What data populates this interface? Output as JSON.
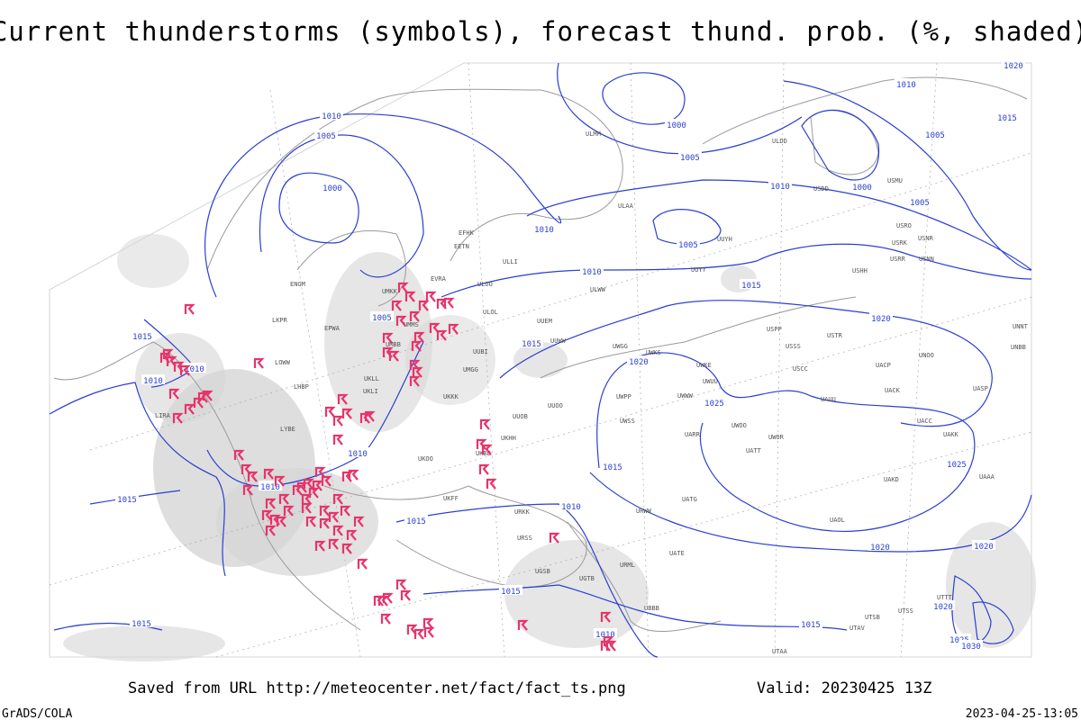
{
  "title": "Current thunderstorms (symbols), forecast thund. prob. (%, shaded)",
  "saved_from": "Saved from URL http://meteocenter.net/fact/fact_ts.png",
  "valid": "Valid: 20230425 13Z",
  "credit": "GrADS/COLA",
  "timestamp": "2023-04-25-13:05",
  "isobar_labels": [
    1010,
    1005,
    1000,
    1000,
    1005,
    1010,
    1000,
    1005,
    1010,
    1005,
    1010,
    1015,
    1020,
    1015,
    1020,
    1025,
    1025,
    1015,
    1010,
    1010,
    1010,
    1015,
    1015,
    1010,
    1005,
    1010,
    1015,
    1015,
    1020,
    1020,
    1020,
    1015,
    1015,
    1010,
    1020,
    1010,
    1015,
    1005,
    1025,
    1030
  ],
  "station_labels": [
    "ULAA",
    "ULOL",
    "ULOO",
    "ULWW",
    "UUEM",
    "UUWW",
    "UUOO",
    "UUOB",
    "UKHH",
    "UKKK",
    "EFHK",
    "EETN",
    "EVRA",
    "ULLI",
    "UMKK",
    "UMMS",
    "UMBB",
    "UKLL",
    "UKLI",
    "LHBP",
    "LYBE",
    "UKOO",
    "UKFF",
    "URKK",
    "URSS",
    "UGSB",
    "UGTB",
    "UBBB",
    "URWW",
    "URML",
    "UATE",
    "UATG",
    "UAOL",
    "UACC",
    "UAKK",
    "UASP",
    "UAKD",
    "UAAA",
    "USSS",
    "USCC",
    "USTR",
    "UNOO",
    "USPP",
    "UUYY",
    "UUYH",
    "USHH",
    "USRR",
    "USNN",
    "USRK",
    "USRO",
    "USNR",
    "USDD",
    "ULDD",
    "USMU",
    "UNNT",
    "UNBB",
    "UAUU",
    "UACK",
    "UACP",
    "UWOO",
    "UWOR",
    "UATT",
    "UARR",
    "UWSS",
    "UWKE",
    "UWUU",
    "UWWW",
    "UWPP",
    "UWKS",
    "UWGG",
    "EPWA",
    "LKPR",
    "LOWW",
    "LIRA",
    "UTAA",
    "UTSS",
    "UTTT",
    "UTSB",
    "UTAV",
    "ENGM",
    "ULMM",
    "UUBI",
    "UKBB",
    "UMGG"
  ]
}
